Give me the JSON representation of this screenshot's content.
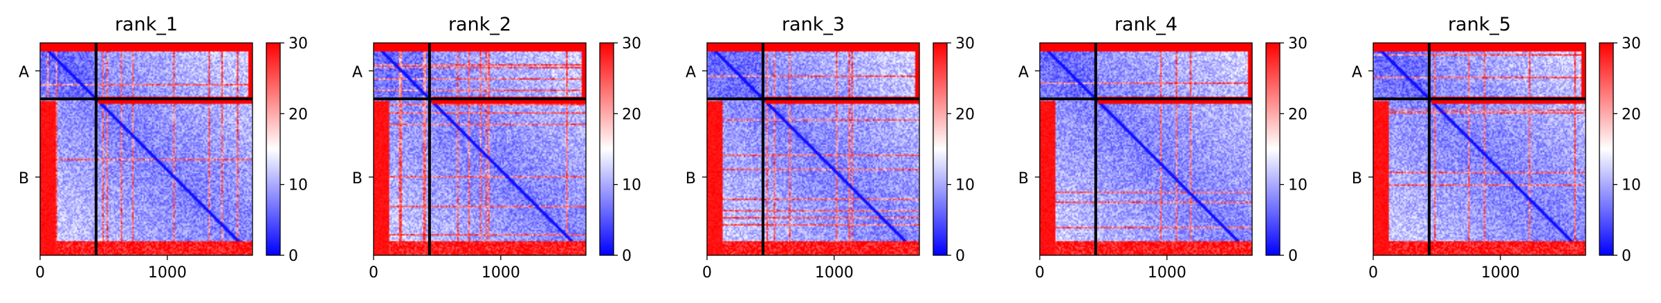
{
  "chart_data": [
    {
      "type": "heatmap",
      "title": "rank_1",
      "n": 1670,
      "boundary": 440,
      "xticks": [
        0,
        1000
      ],
      "yticklabels": [
        {
          "label": "A",
          "pos": 220
        },
        {
          "label": "B",
          "pos": 1055
        }
      ],
      "colorbar": {
        "min": 0,
        "max": 30,
        "ticks": [
          0,
          10,
          20,
          30
        ],
        "colors": [
          "#0000ff",
          "#ffffff",
          "#ff0000"
        ]
      },
      "variant": 1
    },
    {
      "type": "heatmap",
      "title": "rank_2",
      "n": 1670,
      "boundary": 440,
      "xticks": [
        0,
        1000
      ],
      "yticklabels": [
        {
          "label": "A",
          "pos": 220
        },
        {
          "label": "B",
          "pos": 1055
        }
      ],
      "colorbar": {
        "min": 0,
        "max": 30,
        "ticks": [
          0,
          10,
          20,
          30
        ],
        "colors": [
          "#0000ff",
          "#ffffff",
          "#ff0000"
        ]
      },
      "variant": 2
    },
    {
      "type": "heatmap",
      "title": "rank_3",
      "n": 1670,
      "boundary": 440,
      "xticks": [
        0,
        1000
      ],
      "yticklabels": [
        {
          "label": "A",
          "pos": 220
        },
        {
          "label": "B",
          "pos": 1055
        }
      ],
      "colorbar": {
        "min": 0,
        "max": 30,
        "ticks": [
          0,
          10,
          20,
          30
        ],
        "colors": [
          "#0000ff",
          "#ffffff",
          "#ff0000"
        ]
      },
      "variant": 3
    },
    {
      "type": "heatmap",
      "title": "rank_4",
      "n": 1670,
      "boundary": 440,
      "xticks": [
        0,
        1000
      ],
      "yticklabels": [
        {
          "label": "A",
          "pos": 220
        },
        {
          "label": "B",
          "pos": 1055
        }
      ],
      "colorbar": {
        "min": 0,
        "max": 30,
        "ticks": [
          0,
          10,
          20,
          30
        ],
        "colors": [
          "#0000ff",
          "#ffffff",
          "#ff0000"
        ]
      },
      "variant": 4
    },
    {
      "type": "heatmap",
      "title": "rank_5",
      "n": 1670,
      "boundary": 440,
      "xticks": [
        0,
        1000
      ],
      "yticklabels": [
        {
          "label": "A",
          "pos": 220
        },
        {
          "label": "B",
          "pos": 1055
        }
      ],
      "colorbar": {
        "min": 0,
        "max": 30,
        "ticks": [
          0,
          10,
          20,
          30
        ],
        "colors": [
          "#0000ff",
          "#ffffff",
          "#ff0000"
        ]
      },
      "variant": 5
    }
  ]
}
